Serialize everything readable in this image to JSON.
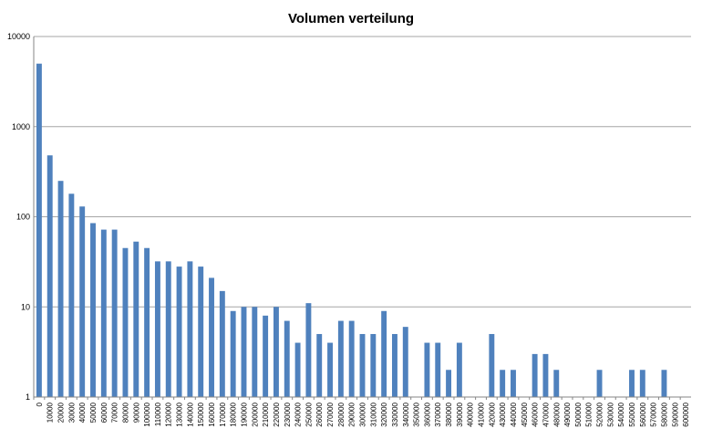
{
  "chart_data": {
    "type": "bar",
    "title": "Volumen verteilung",
    "xlabel": "",
    "ylabel": "",
    "y_scale": "log",
    "ylim": [
      1,
      10000
    ],
    "y_ticks": [
      "1",
      "10",
      "100",
      "1000",
      "10000"
    ],
    "grid": true,
    "legend": "none",
    "bar_color": "#4F81BD",
    "grid_color": "#A6A6A6",
    "categories": [
      "0",
      "10000",
      "20000",
      "30000",
      "40000",
      "50000",
      "60000",
      "70000",
      "80000",
      "90000",
      "100000",
      "110000",
      "120000",
      "130000",
      "140000",
      "150000",
      "160000",
      "170000",
      "180000",
      "190000",
      "200000",
      "210000",
      "220000",
      "230000",
      "240000",
      "250000",
      "260000",
      "270000",
      "280000",
      "290000",
      "300000",
      "310000",
      "320000",
      "330000",
      "340000",
      "350000",
      "360000",
      "370000",
      "380000",
      "390000",
      "400000",
      "410000",
      "420000",
      "430000",
      "440000",
      "450000",
      "460000",
      "470000",
      "480000",
      "490000",
      "500000",
      "510000",
      "520000",
      "530000",
      "540000",
      "550000",
      "560000",
      "570000",
      "580000",
      "590000",
      "600000"
    ],
    "values": [
      5000,
      480,
      250,
      180,
      130,
      85,
      72,
      72,
      45,
      53,
      45,
      32,
      32,
      28,
      32,
      28,
      21,
      15,
      9,
      10,
      10,
      8,
      10,
      7,
      4,
      11,
      5,
      4,
      7,
      7,
      5,
      5,
      9,
      5,
      6,
      1,
      4,
      4,
      2,
      4,
      1,
      1,
      5,
      2,
      2,
      1,
      3,
      3,
      2,
      1,
      1,
      1,
      2,
      1,
      1,
      2,
      2,
      1,
      2,
      1,
      1
    ]
  }
}
